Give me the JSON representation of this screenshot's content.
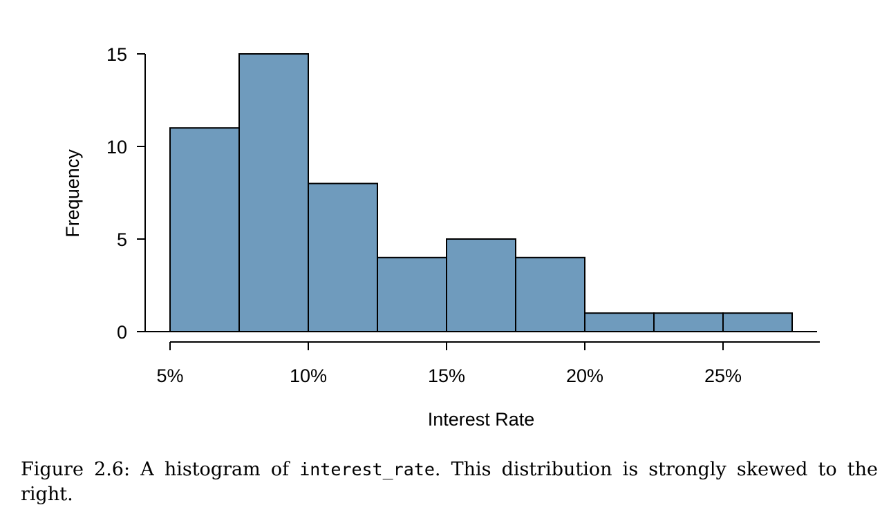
{
  "chart_data": {
    "type": "bar",
    "bin_edges": [
      5,
      7.5,
      10,
      12.5,
      15,
      17.5,
      20,
      22.5,
      25,
      27.5
    ],
    "values": [
      11,
      15,
      8,
      4,
      5,
      4,
      1,
      1,
      1
    ],
    "xlabel": "Interest Rate",
    "ylabel": "Frequency",
    "x_ticks": [
      5,
      10,
      15,
      20,
      25
    ],
    "x_tick_labels": [
      "5%",
      "10%",
      "15%",
      "20%",
      "25%"
    ],
    "y_ticks": [
      0,
      5,
      10,
      15
    ],
    "y_tick_labels": [
      "0",
      "5",
      "10",
      "15"
    ],
    "xlim": [
      5,
      28.5
    ],
    "ylim": [
      0,
      15
    ],
    "grid": false,
    "bar_color": "#6f9bbd"
  },
  "caption": {
    "prefix": "Figure 2.6: A histogram of ",
    "code": "interest_rate",
    "suffix": ". This distribution is strongly skewed to the right."
  }
}
